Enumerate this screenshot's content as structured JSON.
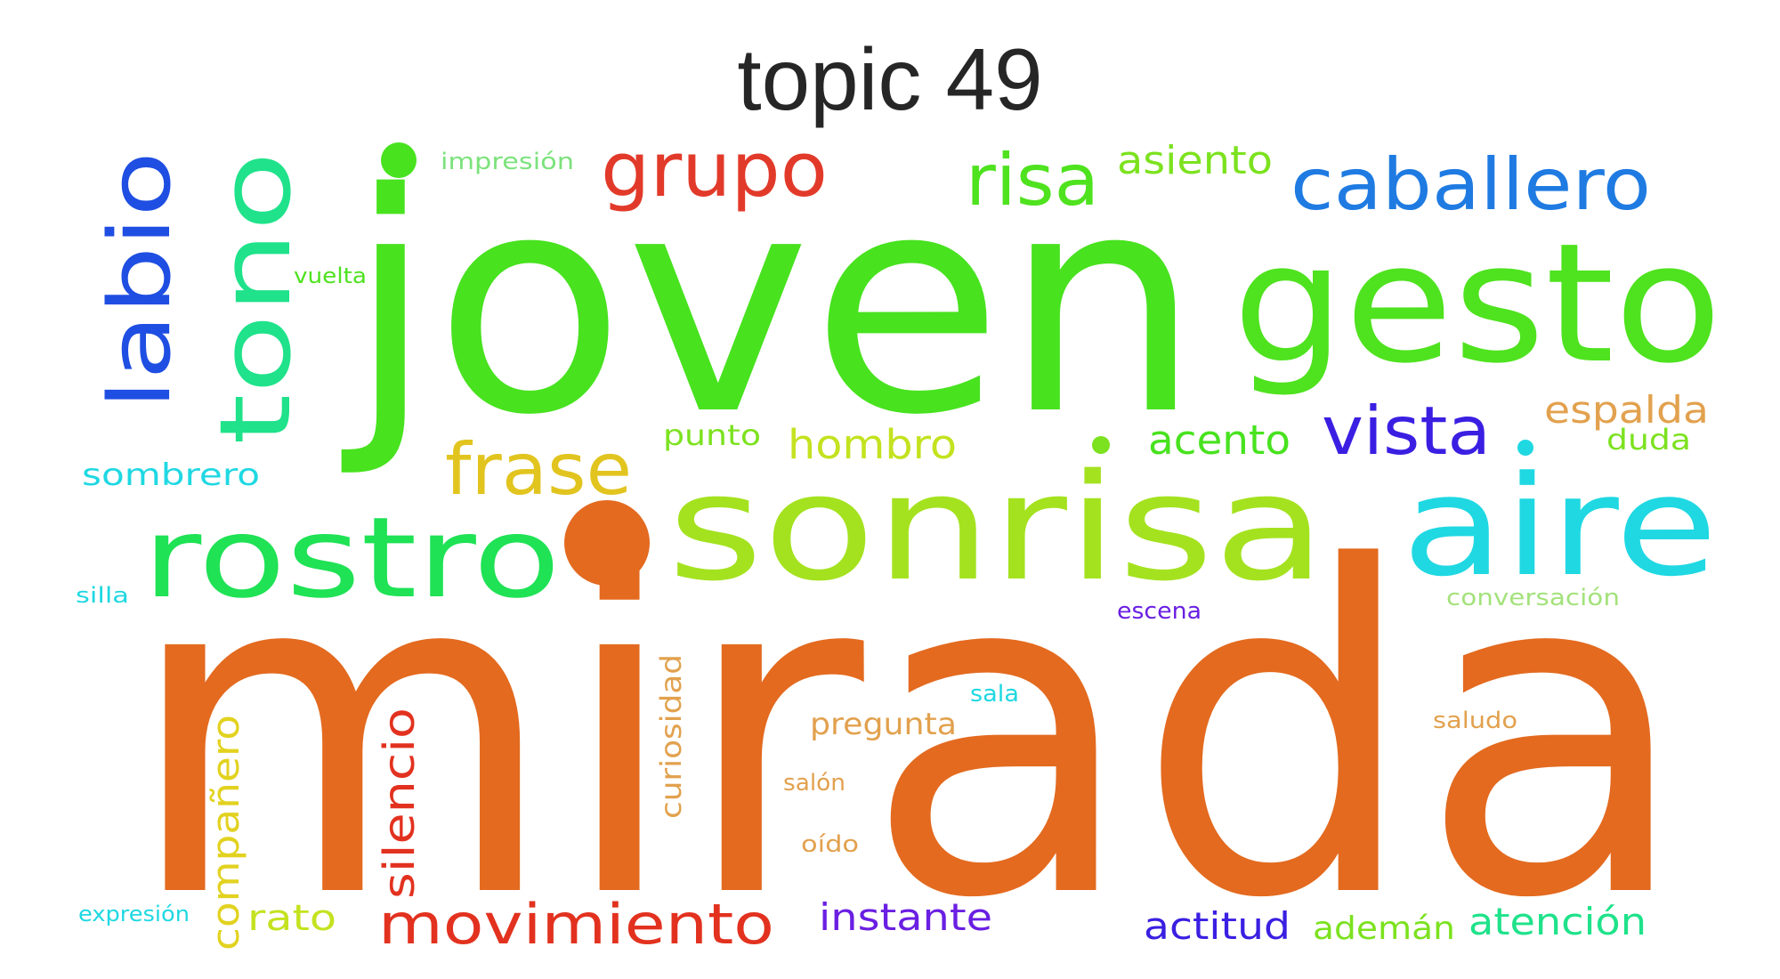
{
  "title": "topic 49",
  "words": [
    {
      "text": "mirada",
      "color": "#e36a1f",
      "rotated": false
    },
    {
      "text": "joven",
      "color": "#48e21f",
      "rotated": false
    },
    {
      "text": "sonrisa",
      "color": "#a4e21f",
      "rotated": false
    },
    {
      "text": "gesto",
      "color": "#4fe21f",
      "rotated": false
    },
    {
      "text": "rostro",
      "color": "#1fe255",
      "rotated": false
    },
    {
      "text": "aire",
      "color": "#1fd8e2",
      "rotated": false
    },
    {
      "text": "tono",
      "color": "#1fe28a",
      "rotated": true
    },
    {
      "text": "labio",
      "color": "#1f4ee2",
      "rotated": true
    },
    {
      "text": "caballero",
      "color": "#1f7be2",
      "rotated": false
    },
    {
      "text": "grupo",
      "color": "#e23a2a",
      "rotated": false
    },
    {
      "text": "risa",
      "color": "#4fe21f",
      "rotated": false
    },
    {
      "text": "frase",
      "color": "#e2c41f",
      "rotated": false
    },
    {
      "text": "vista",
      "color": "#3a1fe2",
      "rotated": false
    },
    {
      "text": "movimiento",
      "color": "#e2321f",
      "rotated": false
    },
    {
      "text": "silencio",
      "color": "#e2321f",
      "rotated": true
    },
    {
      "text": "hombro",
      "color": "#c4e21f",
      "rotated": false
    },
    {
      "text": "acento",
      "color": "#48e21f",
      "rotated": false
    },
    {
      "text": "asiento",
      "color": "#7ce21f",
      "rotated": false
    },
    {
      "text": "espalda",
      "color": "#e2a14e",
      "rotated": false
    },
    {
      "text": "compañero",
      "color": "#e2d21f",
      "rotated": true
    },
    {
      "text": "atención",
      "color": "#1fe28a",
      "rotated": false
    },
    {
      "text": "actitud",
      "color": "#3a1fe2",
      "rotated": false
    },
    {
      "text": "instante",
      "color": "#6a1fe2",
      "rotated": false
    },
    {
      "text": "rato",
      "color": "#c4e21f",
      "rotated": false
    },
    {
      "text": "ademán",
      "color": "#7ce21f",
      "rotated": false
    },
    {
      "text": "curiosidad",
      "color": "#e2a14e",
      "rotated": true
    },
    {
      "text": "pregunta",
      "color": "#e2a14e",
      "rotated": false
    },
    {
      "text": "sombrero",
      "color": "#1fd8e2",
      "rotated": false
    },
    {
      "text": "punto",
      "color": "#7ce21f",
      "rotated": false
    },
    {
      "text": "duda",
      "color": "#7ce21f",
      "rotated": false
    },
    {
      "text": "impresión",
      "color": "#7ce27c",
      "rotated": false
    },
    {
      "text": "vuelta",
      "color": "#4fe21f",
      "rotated": false
    },
    {
      "text": "conversación",
      "color": "#a4e27c",
      "rotated": false
    },
    {
      "text": "escena",
      "color": "#6a1fe2",
      "rotated": false
    },
    {
      "text": "sala",
      "color": "#1fd8e2",
      "rotated": false
    },
    {
      "text": "saludo",
      "color": "#e2a14e",
      "rotated": false
    },
    {
      "text": "salón",
      "color": "#e2a14e",
      "rotated": false
    },
    {
      "text": "oído",
      "color": "#e2a14e",
      "rotated": false
    },
    {
      "text": "silla",
      "color": "#1fd8e2",
      "rotated": false
    },
    {
      "text": "expresión",
      "color": "#1fd8e2",
      "rotated": false
    }
  ],
  "dots": [
    {
      "color": "#48e21f"
    },
    {
      "color": "#e36a1f"
    },
    {
      "color": "#7ce21f"
    },
    {
      "color": "#1fd8e2"
    }
  ]
}
